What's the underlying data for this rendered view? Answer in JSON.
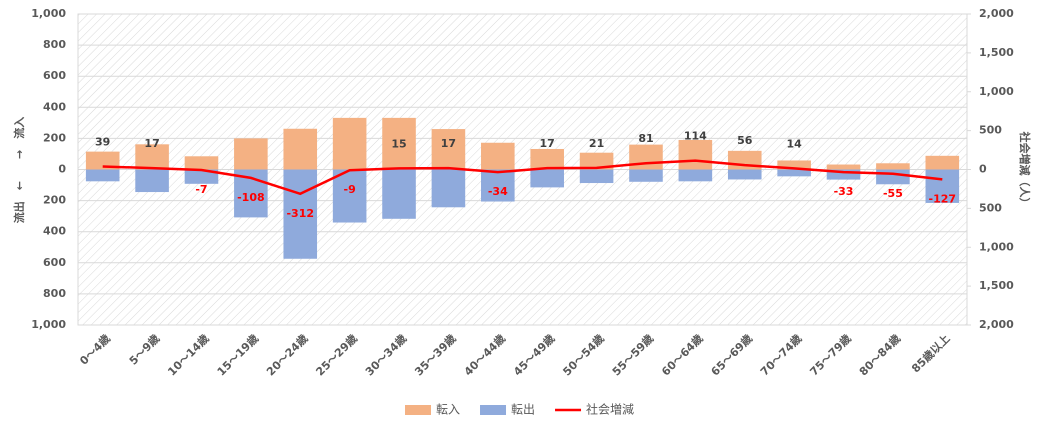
{
  "chart_data": {
    "type": "bar-line",
    "y_label": "流出　←　　→　流入",
    "y2_label": "社会増減（人）",
    "categories": [
      "0～4歳",
      "5～9歳",
      "10～14歳",
      "15～19歳",
      "20～24歳",
      "25～29歳",
      "30～34歳",
      "35～39歳",
      "40～44歳",
      "45～49歳",
      "50～54歳",
      "55～59歳",
      "60～64歳",
      "65～69歳",
      "70～74歳",
      "75～79歳",
      "80～84歳",
      "85歳以上"
    ],
    "series": [
      {
        "name": "転入",
        "color": "#f4b183",
        "kind": "bar",
        "values": [
          115,
          162,
          85,
          200,
          262,
          332,
          332,
          260,
          172,
          132,
          108,
          160,
          190,
          120,
          58,
          32,
          40,
          88
        ]
      },
      {
        "name": "転出",
        "color": "#8faadc",
        "kind": "bar",
        "values": [
          -76,
          -145,
          -92,
          -308,
          -574,
          -341,
          -317,
          -243,
          -206,
          -115,
          -87,
          -79,
          -76,
          -64,
          -44,
          -65,
          -95,
          -215
        ]
      },
      {
        "name": "社会増減",
        "color": "#ff0000",
        "kind": "line",
        "axis": "y2",
        "values": [
          39,
          17,
          -7,
          -108,
          -312,
          -9,
          15,
          17,
          -34,
          17,
          21,
          81,
          114,
          56,
          14,
          -33,
          -55,
          -127
        ]
      }
    ],
    "ylim": [
      -1000,
      1000
    ],
    "yticks": [
      {
        "value": -1000,
        "label": "1,000"
      },
      {
        "value": -800,
        "label": "800"
      },
      {
        "value": -600,
        "label": "600"
      },
      {
        "value": -400,
        "label": "400"
      },
      {
        "value": -200,
        "label": "200"
      },
      0,
      200,
      400,
      600,
      800,
      {
        "value": 1000,
        "label": "1,000"
      }
    ],
    "y2lim": [
      -2000,
      2000
    ],
    "y2ticks": [
      {
        "value": -2000,
        "label": "2,000"
      },
      {
        "value": -1500,
        "label": "1,500"
      },
      {
        "value": -1000,
        "label": "1,000"
      },
      {
        "value": -500,
        "label": "500"
      },
      0,
      500,
      {
        "value": 1000,
        "label": "1,000"
      },
      {
        "value": 1500,
        "label": "1,500"
      },
      {
        "value": 2000,
        "label": "2,000"
      }
    ],
    "grid": true,
    "legend": "bottom"
  }
}
